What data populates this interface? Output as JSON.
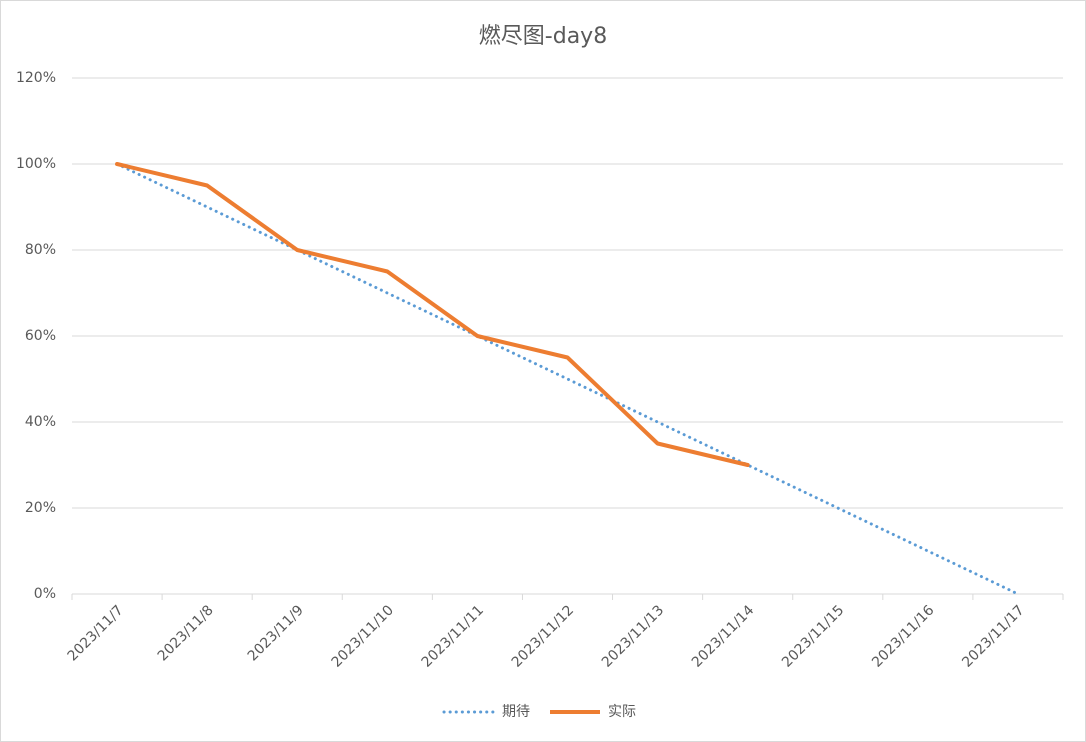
{
  "chart_data": {
    "type": "line",
    "title": "燃尽图-day8",
    "categories": [
      "2023/11/7",
      "2023/11/8",
      "2023/11/9",
      "2023/11/10",
      "2023/11/11",
      "2023/11/12",
      "2023/11/13",
      "2023/11/14",
      "2023/11/15",
      "2023/11/16",
      "2023/11/17"
    ],
    "series": [
      {
        "name": "期待",
        "color": "#5b9bd5",
        "style": "dotted",
        "values": [
          100,
          90,
          80,
          70,
          60,
          50,
          40,
          30,
          20,
          10,
          0
        ]
      },
      {
        "name": "实际",
        "color": "#ed7d31",
        "style": "solid",
        "values": [
          100,
          95,
          80,
          75,
          60,
          55,
          35,
          30,
          null,
          null,
          null
        ]
      }
    ],
    "ylim": [
      0,
      120
    ],
    "yticks": [
      {
        "value": 0,
        "label": "0%"
      },
      {
        "value": 20,
        "label": "20%"
      },
      {
        "value": 40,
        "label": "40%"
      },
      {
        "value": 60,
        "label": "60%"
      },
      {
        "value": 80,
        "label": "80%"
      },
      {
        "value": 100,
        "label": "100%"
      },
      {
        "value": 120,
        "label": "120%"
      }
    ],
    "grid": true,
    "legend": "bottom"
  }
}
